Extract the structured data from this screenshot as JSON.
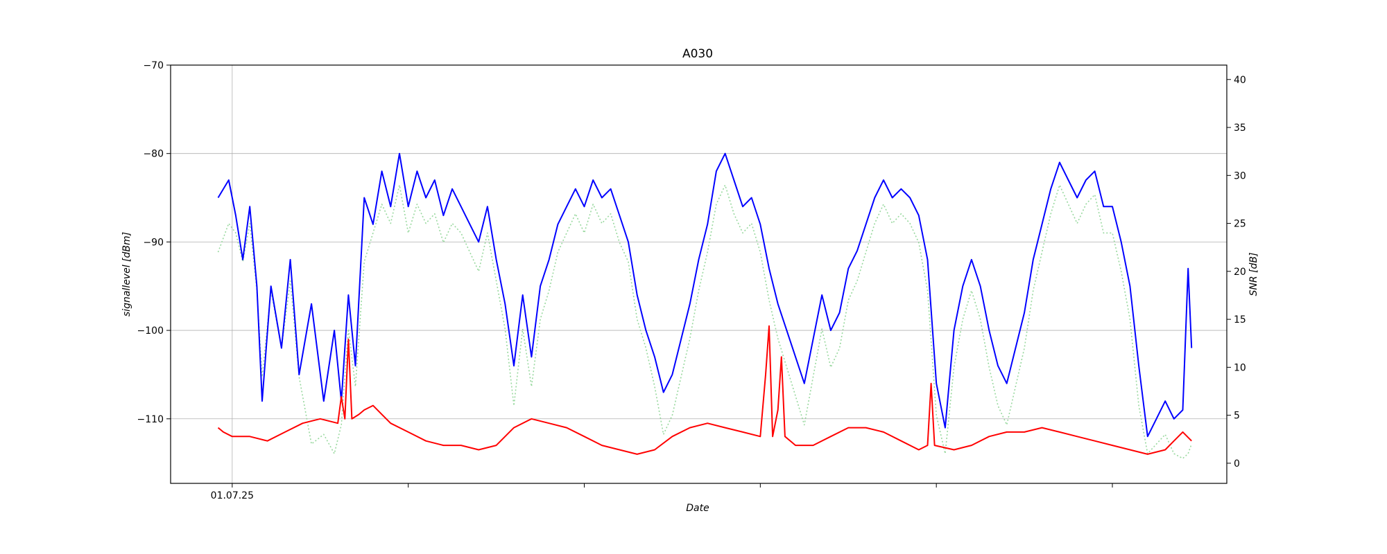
{
  "chart_data": {
    "type": "line",
    "title": "A030",
    "xlabel": "Date",
    "ylabel_left": "signallevel [dBm]",
    "ylabel_right": "SNR [dB]",
    "x_ticks": [
      {
        "label": "01.07.25",
        "day": 0
      },
      {
        "label": "",
        "day": 1
      },
      {
        "label": "",
        "day": 2
      },
      {
        "label": "",
        "day": 3
      },
      {
        "label": "",
        "day": 4
      },
      {
        "label": "",
        "day": 5
      }
    ],
    "xlim_days": [
      -0.35,
      5.65
    ],
    "ylim_left": [
      -117.3,
      -70
    ],
    "yticks_left": [
      -70,
      -80,
      -90,
      -100,
      -110
    ],
    "ylim_right": [
      -2.1,
      41.5
    ],
    "yticks_right": [
      0,
      5,
      10,
      15,
      20,
      25,
      30,
      35,
      40
    ],
    "grid": true,
    "series": [
      {
        "axis": "left",
        "color": "#0000ff",
        "style": "solid",
        "points": [
          [
            -0.08,
            -85
          ],
          [
            -0.02,
            -83
          ],
          [
            0.02,
            -87
          ],
          [
            0.06,
            -92
          ],
          [
            0.1,
            -86
          ],
          [
            0.14,
            -95
          ],
          [
            0.17,
            -108
          ],
          [
            0.22,
            -95
          ],
          [
            0.28,
            -102
          ],
          [
            0.33,
            -92
          ],
          [
            0.38,
            -105
          ],
          [
            0.45,
            -97
          ],
          [
            0.52,
            -108
          ],
          [
            0.58,
            -100
          ],
          [
            0.62,
            -108
          ],
          [
            0.66,
            -96
          ],
          [
            0.7,
            -104
          ],
          [
            0.75,
            -85
          ],
          [
            0.8,
            -88
          ],
          [
            0.85,
            -82
          ],
          [
            0.9,
            -86
          ],
          [
            0.95,
            -80
          ],
          [
            1.0,
            -86
          ],
          [
            1.05,
            -82
          ],
          [
            1.1,
            -85
          ],
          [
            1.15,
            -83
          ],
          [
            1.2,
            -87
          ],
          [
            1.25,
            -84
          ],
          [
            1.3,
            -86
          ],
          [
            1.35,
            -88
          ],
          [
            1.4,
            -90
          ],
          [
            1.45,
            -86
          ],
          [
            1.5,
            -92
          ],
          [
            1.55,
            -97
          ],
          [
            1.6,
            -104
          ],
          [
            1.65,
            -96
          ],
          [
            1.7,
            -103
          ],
          [
            1.75,
            -95
          ],
          [
            1.8,
            -92
          ],
          [
            1.85,
            -88
          ],
          [
            1.9,
            -86
          ],
          [
            1.95,
            -84
          ],
          [
            2.0,
            -86
          ],
          [
            2.05,
            -83
          ],
          [
            2.1,
            -85
          ],
          [
            2.15,
            -84
          ],
          [
            2.2,
            -87
          ],
          [
            2.25,
            -90
          ],
          [
            2.3,
            -96
          ],
          [
            2.35,
            -100
          ],
          [
            2.4,
            -103
          ],
          [
            2.45,
            -107
          ],
          [
            2.5,
            -105
          ],
          [
            2.55,
            -101
          ],
          [
            2.6,
            -97
          ],
          [
            2.65,
            -92
          ],
          [
            2.7,
            -88
          ],
          [
            2.75,
            -82
          ],
          [
            2.8,
            -80
          ],
          [
            2.85,
            -83
          ],
          [
            2.9,
            -86
          ],
          [
            2.95,
            -85
          ],
          [
            3.0,
            -88
          ],
          [
            3.05,
            -93
          ],
          [
            3.1,
            -97
          ],
          [
            3.15,
            -100
          ],
          [
            3.2,
            -103
          ],
          [
            3.25,
            -106
          ],
          [
            3.3,
            -101
          ],
          [
            3.35,
            -96
          ],
          [
            3.4,
            -100
          ],
          [
            3.45,
            -98
          ],
          [
            3.5,
            -93
          ],
          [
            3.55,
            -91
          ],
          [
            3.6,
            -88
          ],
          [
            3.65,
            -85
          ],
          [
            3.7,
            -83
          ],
          [
            3.75,
            -85
          ],
          [
            3.8,
            -84
          ],
          [
            3.85,
            -85
          ],
          [
            3.9,
            -87
          ],
          [
            3.95,
            -92
          ],
          [
            4.0,
            -106
          ],
          [
            4.05,
            -111
          ],
          [
            4.1,
            -100
          ],
          [
            4.15,
            -95
          ],
          [
            4.2,
            -92
          ],
          [
            4.25,
            -95
          ],
          [
            4.3,
            -100
          ],
          [
            4.35,
            -104
          ],
          [
            4.4,
            -106
          ],
          [
            4.45,
            -102
          ],
          [
            4.5,
            -98
          ],
          [
            4.55,
            -92
          ],
          [
            4.6,
            -88
          ],
          [
            4.65,
            -84
          ],
          [
            4.7,
            -81
          ],
          [
            4.75,
            -83
          ],
          [
            4.8,
            -85
          ],
          [
            4.85,
            -83
          ],
          [
            4.9,
            -82
          ],
          [
            4.95,
            -86
          ],
          [
            5.0,
            -86
          ],
          [
            5.05,
            -90
          ],
          [
            5.1,
            -95
          ],
          [
            5.15,
            -104
          ],
          [
            5.2,
            -112
          ],
          [
            5.25,
            -110
          ],
          [
            5.3,
            -108
          ],
          [
            5.35,
            -110
          ],
          [
            5.4,
            -109
          ],
          [
            5.43,
            -93
          ],
          [
            5.45,
            -102
          ]
        ]
      },
      {
        "axis": "right",
        "color": "#98d89e",
        "style": "dotted",
        "points": [
          [
            -0.08,
            22
          ],
          [
            -0.02,
            25
          ],
          [
            0.02,
            24
          ],
          [
            0.06,
            21
          ],
          [
            0.1,
            25
          ],
          [
            0.14,
            18
          ],
          [
            0.17,
            9
          ],
          [
            0.22,
            18
          ],
          [
            0.28,
            12
          ],
          [
            0.33,
            19
          ],
          [
            0.38,
            9
          ],
          [
            0.45,
            2
          ],
          [
            0.52,
            3
          ],
          [
            0.58,
            1
          ],
          [
            0.62,
            4
          ],
          [
            0.66,
            14
          ],
          [
            0.7,
            8
          ],
          [
            0.75,
            21
          ],
          [
            0.8,
            24
          ],
          [
            0.85,
            27
          ],
          [
            0.9,
            25
          ],
          [
            0.95,
            29
          ],
          [
            1.0,
            24
          ],
          [
            1.05,
            27
          ],
          [
            1.1,
            25
          ],
          [
            1.15,
            26
          ],
          [
            1.2,
            23
          ],
          [
            1.25,
            25
          ],
          [
            1.3,
            24
          ],
          [
            1.35,
            22
          ],
          [
            1.4,
            20
          ],
          [
            1.45,
            24
          ],
          [
            1.5,
            19
          ],
          [
            1.55,
            14
          ],
          [
            1.6,
            6
          ],
          [
            1.65,
            14
          ],
          [
            1.7,
            8
          ],
          [
            1.75,
            15
          ],
          [
            1.8,
            18
          ],
          [
            1.85,
            22
          ],
          [
            1.9,
            24
          ],
          [
            1.95,
            26
          ],
          [
            2.0,
            24
          ],
          [
            2.05,
            27
          ],
          [
            2.1,
            25
          ],
          [
            2.15,
            26
          ],
          [
            2.2,
            23
          ],
          [
            2.25,
            21
          ],
          [
            2.3,
            15
          ],
          [
            2.35,
            12
          ],
          [
            2.4,
            8
          ],
          [
            2.45,
            3
          ],
          [
            2.5,
            5
          ],
          [
            2.55,
            9
          ],
          [
            2.6,
            13
          ],
          [
            2.65,
            18
          ],
          [
            2.7,
            22
          ],
          [
            2.75,
            27
          ],
          [
            2.8,
            29
          ],
          [
            2.85,
            26
          ],
          [
            2.9,
            24
          ],
          [
            2.95,
            25
          ],
          [
            3.0,
            22
          ],
          [
            3.05,
            17
          ],
          [
            3.1,
            13
          ],
          [
            3.15,
            10
          ],
          [
            3.2,
            7
          ],
          [
            3.25,
            4
          ],
          [
            3.3,
            9
          ],
          [
            3.35,
            14
          ],
          [
            3.4,
            10
          ],
          [
            3.45,
            12
          ],
          [
            3.5,
            17
          ],
          [
            3.55,
            19
          ],
          [
            3.6,
            22
          ],
          [
            3.65,
            25
          ],
          [
            3.7,
            27
          ],
          [
            3.75,
            25
          ],
          [
            3.8,
            26
          ],
          [
            3.85,
            25
          ],
          [
            3.9,
            23
          ],
          [
            3.95,
            18
          ],
          [
            4.0,
            5
          ],
          [
            4.05,
            1
          ],
          [
            4.1,
            10
          ],
          [
            4.15,
            15
          ],
          [
            4.2,
            18
          ],
          [
            4.25,
            15
          ],
          [
            4.3,
            10
          ],
          [
            4.35,
            6
          ],
          [
            4.4,
            4
          ],
          [
            4.45,
            8
          ],
          [
            4.5,
            12
          ],
          [
            4.55,
            18
          ],
          [
            4.6,
            22
          ],
          [
            4.65,
            26
          ],
          [
            4.7,
            29
          ],
          [
            4.75,
            27
          ],
          [
            4.8,
            25
          ],
          [
            4.85,
            27
          ],
          [
            4.9,
            28
          ],
          [
            4.95,
            24
          ],
          [
            5.0,
            24
          ],
          [
            5.05,
            20
          ],
          [
            5.1,
            15
          ],
          [
            5.15,
            6
          ],
          [
            5.2,
            1
          ],
          [
            5.25,
            2
          ],
          [
            5.3,
            3
          ],
          [
            5.35,
            1
          ],
          [
            5.4,
            0.5
          ],
          [
            5.43,
            1
          ],
          [
            5.45,
            2
          ]
        ]
      },
      {
        "axis": "left",
        "color": "#ff0000",
        "style": "solid",
        "points": [
          [
            -0.08,
            -111
          ],
          [
            -0.05,
            -111.5
          ],
          [
            0.0,
            -112
          ],
          [
            0.1,
            -112
          ],
          [
            0.2,
            -112.5
          ],
          [
            0.3,
            -111.5
          ],
          [
            0.4,
            -110.5
          ],
          [
            0.5,
            -110
          ],
          [
            0.6,
            -110.5
          ],
          [
            0.62,
            -107.5
          ],
          [
            0.64,
            -110
          ],
          [
            0.66,
            -101
          ],
          [
            0.68,
            -110
          ],
          [
            0.72,
            -109.5
          ],
          [
            0.75,
            -109
          ],
          [
            0.8,
            -108.5
          ],
          [
            0.85,
            -109.5
          ],
          [
            0.9,
            -110.5
          ],
          [
            1.0,
            -111.5
          ],
          [
            1.1,
            -112.5
          ],
          [
            1.2,
            -113
          ],
          [
            1.3,
            -113
          ],
          [
            1.4,
            -113.5
          ],
          [
            1.5,
            -113
          ],
          [
            1.55,
            -112
          ],
          [
            1.6,
            -111
          ],
          [
            1.7,
            -110
          ],
          [
            1.8,
            -110.5
          ],
          [
            1.9,
            -111
          ],
          [
            2.0,
            -112
          ],
          [
            2.1,
            -113
          ],
          [
            2.2,
            -113.5
          ],
          [
            2.3,
            -114
          ],
          [
            2.4,
            -113.5
          ],
          [
            2.5,
            -112
          ],
          [
            2.6,
            -111
          ],
          [
            2.7,
            -110.5
          ],
          [
            2.8,
            -111
          ],
          [
            2.9,
            -111.5
          ],
          [
            3.0,
            -112
          ],
          [
            3.03,
            -105
          ],
          [
            3.05,
            -99.5
          ],
          [
            3.07,
            -112
          ],
          [
            3.1,
            -109
          ],
          [
            3.12,
            -103
          ],
          [
            3.14,
            -112
          ],
          [
            3.2,
            -113
          ],
          [
            3.3,
            -113
          ],
          [
            3.4,
            -112
          ],
          [
            3.5,
            -111
          ],
          [
            3.6,
            -111
          ],
          [
            3.7,
            -111.5
          ],
          [
            3.8,
            -112.5
          ],
          [
            3.9,
            -113.5
          ],
          [
            3.95,
            -113
          ],
          [
            3.97,
            -106
          ],
          [
            3.99,
            -113
          ],
          [
            4.1,
            -113.5
          ],
          [
            4.2,
            -113
          ],
          [
            4.3,
            -112
          ],
          [
            4.4,
            -111.5
          ],
          [
            4.5,
            -111.5
          ],
          [
            4.6,
            -111
          ],
          [
            4.7,
            -111.5
          ],
          [
            4.8,
            -112
          ],
          [
            4.9,
            -112.5
          ],
          [
            5.0,
            -113
          ],
          [
            5.1,
            -113.5
          ],
          [
            5.2,
            -114
          ],
          [
            5.3,
            -113.5
          ],
          [
            5.35,
            -112.5
          ],
          [
            5.4,
            -111.5
          ],
          [
            5.45,
            -112.5
          ]
        ]
      }
    ]
  }
}
